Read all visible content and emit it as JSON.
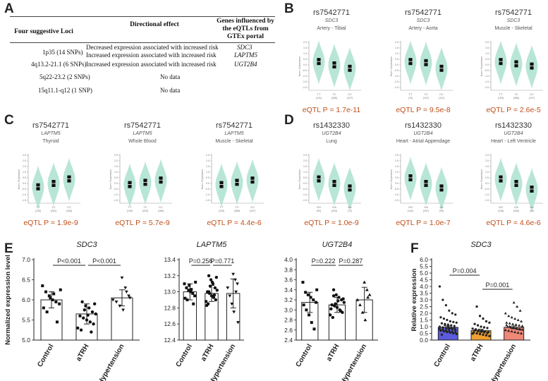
{
  "panel_letters": [
    "A",
    "B",
    "C",
    "D",
    "E",
    "F"
  ],
  "table": {
    "headers": [
      "Four suggestive Loci",
      "Directional effect",
      "Genes influenced by the eQTLs from GTEx portal"
    ],
    "rows": [
      {
        "locus": "1p35 (14 SNPs)",
        "effects": [
          "Decreased expression associated with increased risk",
          "Increased expression associated with increased risk"
        ],
        "genes": [
          "SDC3",
          "LAPTM5"
        ]
      },
      {
        "locus": "4q13.2-21.1 (6 SNPs)",
        "effects": [
          "Increased expression associated with increased risk"
        ],
        "genes": [
          "UGT2B4"
        ]
      },
      {
        "locus": "5q22-23.2 (2 SNPs)",
        "effects": [
          "No data"
        ],
        "genes": []
      },
      {
        "locus": "15q11.1-q12 (1 SNP)",
        "effects": [
          "No data"
        ],
        "genes": []
      }
    ]
  },
  "violins": [
    {
      "panel": "B",
      "rs": "rs7542771",
      "gene": "SDC3",
      "tissue": "Artery - Tibial",
      "genotypes": [
        "TT",
        "TC",
        "CC"
      ],
      "counts": [
        "(131)",
        "(288)",
        "(197)"
      ],
      "medians": [
        0.3,
        0.0,
        -0.3
      ],
      "yticks": [
        "2.0",
        "1.5",
        "1.0",
        "0.5",
        "0.0",
        "-0.5",
        "-1.0",
        "-1.5",
        "-2.0"
      ],
      "eqtl_label": "eQTL P = 1.7e-11"
    },
    {
      "panel": "B",
      "rs": "rs7542771",
      "gene": "SDC3",
      "tissue": "Artery - Aorta",
      "genotypes": [
        "TT",
        "TC",
        "CC"
      ],
      "counts": [
        "(76)",
        "(197)",
        "(112)"
      ],
      "medians": [
        0.3,
        0.2,
        -0.3
      ],
      "yticks": [
        "2.0",
        "1.5",
        "1.0",
        "0.5",
        "0.0",
        "-0.5",
        "-1.0",
        "-1.5",
        "-2.0"
      ],
      "eqtl_label": "eQTL P = 9.5e-8"
    },
    {
      "panel": "B",
      "rs": "rs7542771",
      "gene": "SDC3",
      "tissue": "Muscle - Skeletal",
      "genotypes": [
        "TT",
        "TC",
        "CC"
      ],
      "counts": [
        "(153)",
        "(388)",
        "(197)"
      ],
      "medians": [
        0.3,
        0.1,
        -0.1
      ],
      "yticks": [
        "2.0",
        "1.5",
        "1.0",
        "0.5",
        "0.0",
        "-0.5",
        "-1.0",
        "-1.5",
        "-2.0"
      ],
      "eqtl_label": "eQTL P = 2.6e-5"
    },
    {
      "panel": "C",
      "rs": "rs7542771",
      "gene": "LAPTM5",
      "tissue": "Thyroid",
      "genotypes": [
        "TT",
        "TC",
        "CC"
      ],
      "counts": [
        "(130)",
        "(281)",
        "(165)"
      ],
      "medians": [
        -0.3,
        0.0,
        0.4
      ],
      "yticks": [
        "2.5",
        "2.0",
        "1.5",
        "1.0",
        "0.5",
        "0.0",
        "-0.5",
        "-1.0",
        "-1.5"
      ],
      "eqtl_label": "eQTL P = 1.9e-9"
    },
    {
      "panel": "C",
      "rs": "rs7542771",
      "gene": "LAPTM5",
      "tissue": "Whole Blood",
      "genotypes": [
        "TT",
        "TC",
        "CC"
      ],
      "counts": [
        "(149)",
        "(333)",
        "(186)"
      ],
      "medians": [
        -0.1,
        0.1,
        0.3
      ],
      "yticks": [
        "2.5",
        "2.0",
        "1.5",
        "1.0",
        "0.5",
        "0.0",
        "-0.5",
        "-1.0",
        "-1.5"
      ],
      "eqtl_label": "eQTL P = 5.7e-9"
    },
    {
      "panel": "C",
      "rs": "rs7542771",
      "gene": "LAPTM5",
      "tissue": "Muscle - Skeletal",
      "genotypes": [
        "TT",
        "TC",
        "CC"
      ],
      "counts": [
        "(153)",
        "(388)",
        "(197)"
      ],
      "medians": [
        -0.1,
        0.1,
        0.3
      ],
      "yticks": [
        "2.5",
        "2.0",
        "1.5",
        "1.0",
        "0.5",
        "0.0",
        "-0.5",
        "-1.0",
        "-1.5"
      ],
      "eqtl_label": "eQTL P = 4.4e-6"
    },
    {
      "panel": "D",
      "rs": "rs1432330",
      "gene": "UGT2B4",
      "tissue": "Lung",
      "genotypes": [
        "GG",
        "GA",
        "AA"
      ],
      "counts": [
        "(90)",
        "(254)",
        "(72)"
      ],
      "medians": [
        0.4,
        0.0,
        -0.4
      ],
      "yticks": [
        "2.5",
        "2.0",
        "1.5",
        "1.0",
        "0.5",
        "0.0",
        "-0.5",
        "-1.0",
        "-1.5"
      ],
      "eqtl_label": "eQTL P = 1.0e-9"
    },
    {
      "panel": "D",
      "rs": "rs1432330",
      "gene": "UGT2B4",
      "tissue": "Heart - Atrial Appendage",
      "genotypes": [
        "GG",
        "GA",
        "AA"
      ],
      "counts": [
        "(142)",
        "(267)",
        "(90)"
      ],
      "medians": [
        0.5,
        0.0,
        -0.4
      ],
      "yticks": [
        "2.5",
        "2.0",
        "1.5",
        "1.0",
        "0.5",
        "0.0",
        "-0.5",
        "-1.0",
        "-1.5"
      ],
      "eqtl_label": "eQTL P = 1.0e-7"
    },
    {
      "panel": "D",
      "rs": "rs1432330",
      "gene": "UGT2B4",
      "tissue": "Heart - Left Ventricle",
      "genotypes": [
        "GG",
        "GA",
        "AA"
      ],
      "counts": [
        "(138)",
        "(283)",
        "(48)"
      ],
      "medians": [
        0.4,
        0.0,
        -0.5
      ],
      "yticks": [
        "2.5",
        "2.0",
        "1.5",
        "1.0",
        "0.5",
        "0.0",
        "-0.5",
        "-1.0",
        "-1.5"
      ],
      "eqtl_label": "eQTL P = 4.6e-6"
    }
  ],
  "violin_ylabel": "Norm. Expression",
  "chart_data": [
    {
      "type": "bar",
      "panel": "E",
      "title": "SDC3",
      "ylabel": "Normalized expression level",
      "categories": [
        "Control",
        "aTRH",
        "Hypertension"
      ],
      "values": [
        6.0,
        5.65,
        6.05
      ],
      "errors": [
        0.2,
        0.25,
        0.2
      ],
      "ylim": [
        5.0,
        7.0
      ],
      "yticks": [
        "5.0",
        "5.5",
        "6.0",
        "6.5",
        "7.0"
      ],
      "ytick_values": [
        5.0,
        5.5,
        6.0,
        6.5,
        7.0
      ],
      "comparisons": [
        {
          "from": 0,
          "to": 1,
          "label": "P<0.001"
        },
        {
          "from": 1,
          "to": 2,
          "label": "P<0.001"
        }
      ],
      "points": [
        [
          6.35,
          6.2,
          6.1,
          6.0,
          5.95,
          5.9,
          5.8,
          5.7,
          6.05,
          6.15,
          5.45,
          6.25
        ],
        [
          5.95,
          5.85,
          5.8,
          5.7,
          5.65,
          5.6,
          5.55,
          5.5,
          5.45,
          5.4,
          5.3,
          5.25,
          5.75,
          5.62,
          5.2,
          5.9
        ],
        [
          6.55,
          6.3,
          6.1,
          6.0,
          5.95,
          5.85,
          5.75,
          6.2,
          6.05
        ]
      ]
    },
    {
      "type": "bar",
      "panel": "E",
      "title": "LAPTM5",
      "ylabel": "",
      "categories": [
        "Control",
        "aTRH",
        "Hypertension"
      ],
      "values": [
        13.0,
        12.98,
        12.98
      ],
      "errors": [
        0.1,
        0.1,
        0.18
      ],
      "ylim": [
        12.4,
        13.4
      ],
      "yticks": [
        "12.4",
        "12.6",
        "12.8",
        "13.0",
        "13.2",
        "13.4"
      ],
      "ytick_values": [
        12.4,
        12.6,
        12.8,
        13.0,
        13.2,
        13.4
      ],
      "comparisons": [
        {
          "from": 0,
          "to": 1,
          "label": "P=0.256"
        },
        {
          "from": 1,
          "to": 2,
          "label": "P=0.771"
        }
      ],
      "points": [
        [
          13.1,
          13.05,
          13.02,
          13.0,
          12.98,
          12.95,
          12.92,
          12.9,
          13.08,
          13.03,
          12.85,
          13.12
        ],
        [
          13.2,
          13.15,
          13.1,
          13.05,
          13.02,
          13.0,
          12.98,
          12.95,
          12.93,
          12.9,
          12.88,
          12.85,
          13.07,
          13.12,
          12.96,
          13.18,
          12.83,
          13.0
        ],
        [
          13.22,
          13.15,
          13.1,
          13.05,
          12.95,
          12.85,
          12.75,
          13.0,
          12.62
        ]
      ]
    },
    {
      "type": "bar",
      "panel": "E",
      "title": "UGT2B4",
      "ylabel": "",
      "categories": [
        "Control",
        "aTRH",
        "Hypertension"
      ],
      "values": [
        3.15,
        3.1,
        3.2
      ],
      "errors": [
        0.2,
        0.15,
        0.25
      ],
      "ylim": [
        2.4,
        4.0
      ],
      "yticks": [
        "2.4",
        "2.6",
        "2.8",
        "3.0",
        "3.2",
        "3.4",
        "3.6",
        "3.8",
        "4.0"
      ],
      "ytick_values": [
        2.4,
        2.6,
        2.8,
        3.0,
        3.2,
        3.4,
        3.6,
        3.8,
        4.0
      ],
      "comparisons": [
        {
          "from": 0,
          "to": 1,
          "label": "P=0.222"
        },
        {
          "from": 1,
          "to": 2,
          "label": "P=0.287"
        }
      ],
      "points": [
        [
          3.55,
          3.35,
          3.3,
          3.25,
          3.2,
          3.15,
          3.1,
          3.0,
          2.9,
          2.75,
          2.62,
          3.4
        ],
        [
          3.4,
          3.3,
          3.25,
          3.2,
          3.15,
          3.1,
          3.08,
          3.05,
          3.0,
          2.95,
          2.9,
          2.85,
          3.12,
          3.18,
          2.98,
          3.22,
          3.02,
          3.28
        ],
        [
          3.55,
          3.4,
          3.3,
          3.2,
          3.1,
          2.95,
          2.8,
          3.25
        ]
      ]
    },
    {
      "type": "bar",
      "panel": "F",
      "title": "SDC3",
      "ylabel": "Relative expression",
      "categories": [
        "Control",
        "aTRH",
        "Hypertension"
      ],
      "values": [
        0.95,
        0.7,
        0.95
      ],
      "errors": [
        0.1,
        0.1,
        0.1
      ],
      "ylim": [
        0.0,
        6.0
      ],
      "yticks": [
        "0.0",
        "0.5",
        "1.0",
        "1.5",
        "2.0",
        "2.5",
        "3.0",
        "3.5",
        "4.0",
        "4.5",
        "5.0",
        "5.5",
        "6.0"
      ],
      "ytick_values": [
        0.0,
        0.5,
        1.0,
        1.5,
        2.0,
        2.5,
        3.0,
        3.5,
        4.0,
        4.5,
        5.0,
        5.5,
        6.0
      ],
      "comparisons": [
        {
          "from": 0,
          "to": 1,
          "label": "P=0.004"
        },
        {
          "from": 1,
          "to": 2,
          "label": "P=0.001"
        }
      ],
      "bar_colors": [
        "#5b5bdb",
        "#f0a030",
        "#f08878"
      ],
      "points": [
        [
          4.0,
          3.0,
          2.6,
          2.2,
          2.0,
          1.9,
          1.7,
          1.6,
          1.5,
          1.4,
          1.35,
          1.3,
          1.25,
          1.2,
          1.15,
          1.1,
          1.05,
          1.0,
          0.95,
          0.9,
          0.85,
          0.8,
          0.75,
          0.7,
          0.65,
          0.6,
          0.55,
          0.5,
          0.45,
          0.4,
          1.12,
          1.02,
          0.92,
          0.88,
          0.82,
          0.78,
          0.72,
          0.68,
          0.62,
          0.58
        ],
        [
          2.5,
          1.8,
          1.6,
          1.4,
          1.3,
          1.2,
          1.1,
          1.0,
          0.95,
          0.9,
          0.85,
          0.8,
          0.75,
          0.7,
          0.65,
          0.6,
          0.55,
          0.5,
          0.45,
          0.4,
          0.35,
          0.3,
          0.72,
          0.68,
          0.62,
          0.58,
          0.52,
          0.48
        ],
        [
          2.8,
          2.5,
          2.2,
          2.0,
          1.8,
          1.7,
          1.6,
          1.5,
          1.4,
          1.3,
          1.25,
          1.2,
          1.15,
          1.1,
          1.05,
          1.0,
          0.95,
          0.9,
          0.85,
          0.8,
          0.75,
          0.7,
          0.65,
          0.6,
          0.55,
          0.5,
          1.12,
          1.02,
          0.92,
          0.88,
          0.82,
          0.78
        ]
      ]
    }
  ]
}
